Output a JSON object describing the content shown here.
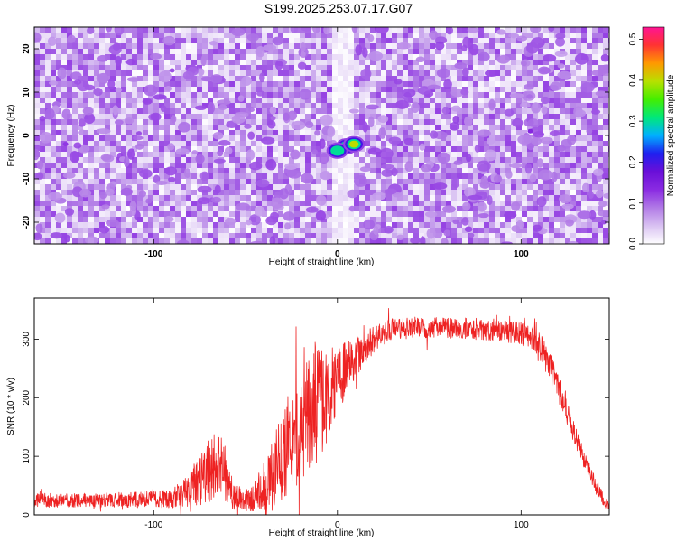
{
  "colors": {
    "background": "#ffffff",
    "snr_line": "#ee2222",
    "axis": "#000000",
    "colormap_stops": [
      "#ffffff",
      "#d9c2f2",
      "#b17ae6",
      "#8a2be2",
      "#6a0fd8",
      "#1f1ff0",
      "#00b0ff",
      "#00e87a",
      "#44ee00",
      "#b8e000",
      "#ff9900",
      "#ff3333",
      "#ff1493"
    ]
  },
  "chart_data": [
    {
      "type": "heatmap",
      "title": "S199.2025.253.07.17.G07",
      "xlabel": "Height of straight line (km)",
      "ylabel": "Frequency (Hz)",
      "xlim": [
        -165,
        148
      ],
      "ylim": [
        -25,
        25
      ],
      "xticks": [
        "-100",
        "0",
        "100"
      ],
      "xtick_values": [
        -100,
        0,
        100
      ],
      "yticks": [
        "-20",
        "-10",
        "0",
        "10",
        "20"
      ],
      "ytick_values": [
        -20,
        -10,
        0,
        10,
        20
      ],
      "colorbar": {
        "label": "Normalized spectral amplitude",
        "range": [
          0,
          0.53
        ],
        "ticks": [
          "0.0",
          "0.1",
          "0.2",
          "0.3",
          "0.4",
          "0.5"
        ],
        "tick_values": [
          0.0,
          0.1,
          0.2,
          0.3,
          0.4,
          0.5
        ]
      },
      "background_amplitude": [
        0.0,
        0.12
      ],
      "clear_band_x": [
        -2,
        8
      ],
      "peaks": [
        {
          "x": 5,
          "y": -2.5,
          "amplitude": 0.48
        },
        {
          "x": 0,
          "y": -3.5,
          "amplitude": 0.3
        },
        {
          "x": 9,
          "y": -2,
          "amplitude": 0.42
        },
        {
          "x": 105,
          "y": 1,
          "amplitude": 0.1
        },
        {
          "x": -148,
          "y": -2,
          "amplitude": 0.09
        },
        {
          "x": -108,
          "y": 0.5,
          "amplitude": 0.08
        },
        {
          "x": -90,
          "y": 15,
          "amplitude": 0.08
        },
        {
          "x": 73,
          "y": -23,
          "amplitude": 0.07
        },
        {
          "x": -35,
          "y": 4,
          "amplitude": 0.07
        },
        {
          "x": 145,
          "y": -20,
          "amplitude": 0.08
        }
      ]
    },
    {
      "type": "line",
      "xlabel": "Height of straight line (km)",
      "ylabel": "SNR (10 * v/v)",
      "xlim": [
        -165,
        148
      ],
      "ylim": [
        0,
        370
      ],
      "xticks": [
        "-100",
        "0",
        "100"
      ],
      "xtick_values": [
        -100,
        0,
        100
      ],
      "yticks": [
        "0",
        "100",
        "200",
        "300"
      ],
      "ytick_values": [
        0,
        100,
        200,
        300
      ],
      "series": [
        {
          "name": "SNR",
          "envelope_x": [
            -165,
            -130,
            -110,
            -90,
            -80,
            -75,
            -70,
            -65,
            -62,
            -58,
            -55,
            -50,
            -45,
            -40,
            -35,
            -30,
            -25,
            -20,
            -15,
            -10,
            -5,
            0,
            5,
            10,
            15,
            20,
            25,
            30,
            40,
            50,
            60,
            70,
            80,
            90,
            100,
            105,
            110,
            115,
            120,
            125,
            130,
            135,
            140,
            145,
            148
          ],
          "envelope_y": [
            25,
            25,
            26,
            28,
            45,
            60,
            75,
            90,
            70,
            40,
            30,
            25,
            30,
            50,
            70,
            100,
            130,
            150,
            170,
            190,
            210,
            230,
            250,
            270,
            285,
            300,
            310,
            318,
            320,
            320,
            318,
            318,
            316,
            314,
            310,
            305,
            290,
            260,
            220,
            175,
            130,
            90,
            55,
            25,
            12
          ],
          "noise_amplitude": [
            12,
            12,
            14,
            16,
            30,
            45,
            60,
            60,
            50,
            30,
            22,
            18,
            25,
            45,
            60,
            75,
            90,
            95,
            100,
            95,
            80,
            60,
            45,
            35,
            28,
            22,
            20,
            18,
            18,
            18,
            18,
            18,
            18,
            18,
            20,
            22,
            26,
            26,
            24,
            20,
            18,
            15,
            12,
            10,
            8
          ]
        }
      ]
    }
  ]
}
